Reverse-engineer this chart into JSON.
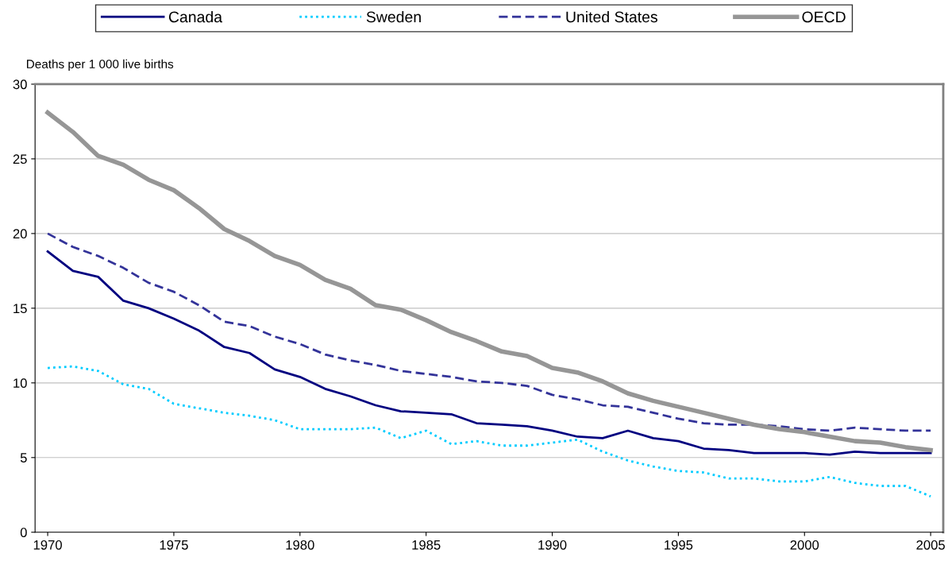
{
  "chart_data": {
    "type": "line",
    "ylabel": "Deaths per 1 000 live births",
    "x": [
      1970,
      1971,
      1972,
      1973,
      1974,
      1975,
      1976,
      1977,
      1978,
      1979,
      1980,
      1981,
      1982,
      1983,
      1984,
      1985,
      1986,
      1987,
      1988,
      1989,
      1990,
      1991,
      1992,
      1993,
      1994,
      1995,
      1996,
      1997,
      1998,
      1999,
      2000,
      2001,
      2002,
      2003,
      2004,
      2005
    ],
    "series": [
      {
        "name": "Canada",
        "color": "#000080",
        "line_style": "solid",
        "values": [
          18.8,
          17.5,
          17.1,
          15.5,
          15.0,
          14.3,
          13.5,
          12.4,
          12.0,
          10.9,
          10.4,
          9.6,
          9.1,
          8.5,
          8.1,
          8.0,
          7.9,
          7.3,
          7.2,
          7.1,
          6.8,
          6.4,
          6.3,
          6.8,
          6.3,
          6.1,
          5.6,
          5.5,
          5.3,
          5.3,
          5.3,
          5.2,
          5.4,
          5.3,
          5.3,
          5.3
        ]
      },
      {
        "name": "Sweden",
        "color": "#00ccff",
        "line_style": "dotted",
        "values": [
          11.0,
          11.1,
          10.8,
          9.9,
          9.6,
          8.6,
          8.3,
          8.0,
          7.8,
          7.5,
          6.9,
          6.9,
          6.9,
          7.0,
          6.3,
          6.8,
          5.9,
          6.1,
          5.8,
          5.8,
          6.0,
          6.2,
          5.4,
          4.8,
          4.4,
          4.1,
          4.0,
          3.6,
          3.6,
          3.4,
          3.4,
          3.7,
          3.3,
          3.1,
          3.1,
          2.4
        ]
      },
      {
        "name": "United States",
        "color": "#333399",
        "line_style": "dashed",
        "values": [
          20.0,
          19.1,
          18.5,
          17.7,
          16.7,
          16.1,
          15.2,
          14.1,
          13.8,
          13.1,
          12.6,
          11.9,
          11.5,
          11.2,
          10.8,
          10.6,
          10.4,
          10.1,
          10.0,
          9.8,
          9.2,
          8.9,
          8.5,
          8.4,
          8.0,
          7.6,
          7.3,
          7.2,
          7.2,
          7.1,
          6.9,
          6.8,
          7.0,
          6.9,
          6.8,
          6.8
        ]
      },
      {
        "name": "OECD",
        "color": "#969696",
        "line_style": "solid",
        "values": [
          28.1,
          26.8,
          25.2,
          24.6,
          23.6,
          22.9,
          21.7,
          20.3,
          19.5,
          18.5,
          17.9,
          16.9,
          16.3,
          15.2,
          14.9,
          14.2,
          13.4,
          12.8,
          12.1,
          11.8,
          11.0,
          10.7,
          10.1,
          9.3,
          8.8,
          8.4,
          8.0,
          7.6,
          7.2,
          6.9,
          6.7,
          6.4,
          6.1,
          6.0,
          5.7,
          5.5
        ]
      }
    ],
    "xlim": [
      1969.5,
      2005.5
    ],
    "xticks": [
      1970,
      1975,
      1980,
      1985,
      1990,
      1995,
      2000,
      2005
    ],
    "ylim": [
      0,
      30
    ],
    "yticks": [
      0,
      5,
      10,
      15,
      20,
      25,
      30
    ],
    "grid": "y",
    "legend": "top",
    "marker": "none"
  }
}
